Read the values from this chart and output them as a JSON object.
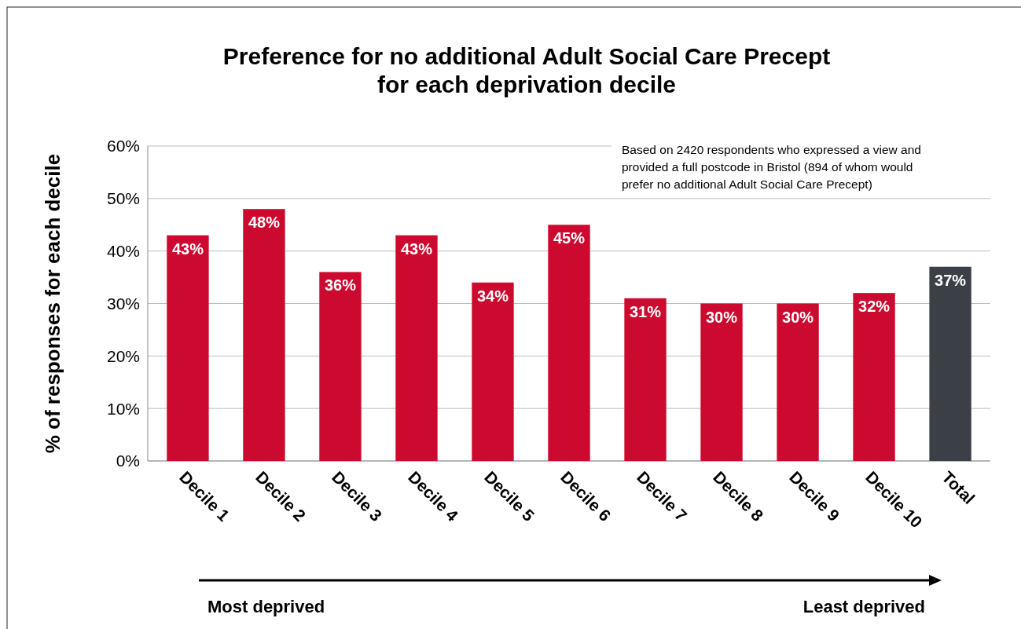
{
  "chart_data": {
    "type": "bar",
    "title": "Preference for no additional Adult Social Care Precept\nfor each deprivation decile",
    "ylabel": "% of responses for each decile",
    "categories": [
      "Decile 1",
      "Decile 2",
      "Decile 3",
      "Decile 4",
      "Decile 5",
      "Decile 6",
      "Decile 7",
      "Decile 8",
      "Decile 9",
      "Decile 10",
      "Total"
    ],
    "values": [
      43,
      48,
      36,
      43,
      34,
      45,
      31,
      30,
      30,
      32,
      37
    ],
    "colors": [
      "#cc0a2f",
      "#cc0a2f",
      "#cc0a2f",
      "#cc0a2f",
      "#cc0a2f",
      "#cc0a2f",
      "#cc0a2f",
      "#cc0a2f",
      "#cc0a2f",
      "#cc0a2f",
      "#3b3f46"
    ],
    "value_labels": [
      "43%",
      "48%",
      "36%",
      "43%",
      "34%",
      "45%",
      "31%",
      "30%",
      "30%",
      "32%",
      "37%"
    ],
    "ylim": [
      0,
      60
    ],
    "yticks": [
      {
        "value": 0,
        "label": "0%"
      },
      {
        "value": 10,
        "label": "10%"
      },
      {
        "value": 20,
        "label": "20%"
      },
      {
        "value": 30,
        "label": "30%"
      },
      {
        "value": 40,
        "label": "40%"
      },
      {
        "value": 50,
        "label": "50%"
      },
      {
        "value": 60,
        "label": "60%"
      }
    ],
    "grid": "y",
    "annotations": [
      "Based on 2420 respondents who expressed a view and provided a full postcode in Bristol (894 of whom would prefer no additional Adult Social Care Precept)",
      "Most deprived",
      "Least deprived"
    ]
  }
}
